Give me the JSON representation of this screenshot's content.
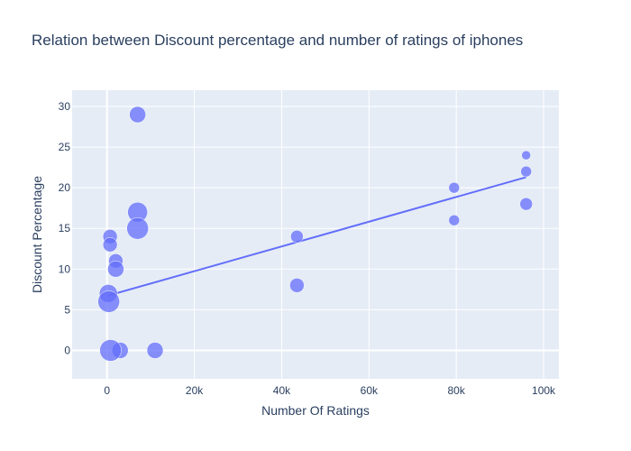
{
  "chart_data": {
    "type": "scatter",
    "title": "Relation between Discount percentage and number of ratings of iphones",
    "xlabel": "Number Of Ratings",
    "ylabel": "Discount Percentage",
    "xlim": [
      -8000,
      103500
    ],
    "ylim": [
      -3.5,
      32
    ],
    "x_ticks": [
      0,
      20000,
      40000,
      60000,
      80000,
      100000
    ],
    "x_tick_labels": [
      "0",
      "20k",
      "40k",
      "60k",
      "80k",
      "100k"
    ],
    "y_ticks": [
      0,
      5,
      10,
      15,
      20,
      25,
      30
    ],
    "y_tick_labels": [
      "0",
      "5",
      "10",
      "15",
      "20",
      "25",
      "30"
    ],
    "grid": true,
    "colors": {
      "plot_bg": "#e5ecf6",
      "grid": "#ffffff",
      "marker": "#636efa",
      "trendline": "#636efa"
    },
    "points": [
      {
        "x": 7000,
        "y": 29,
        "size": 9
      },
      {
        "x": 7000,
        "y": 17,
        "size": 11
      },
      {
        "x": 7000,
        "y": 15,
        "size": 12
      },
      {
        "x": 700,
        "y": 14,
        "size": 8
      },
      {
        "x": 700,
        "y": 13,
        "size": 8
      },
      {
        "x": 2000,
        "y": 11,
        "size": 8
      },
      {
        "x": 2000,
        "y": 10,
        "size": 9
      },
      {
        "x": 300,
        "y": 7,
        "size": 10
      },
      {
        "x": 400,
        "y": 6,
        "size": 12
      },
      {
        "x": 3000,
        "y": 0,
        "size": 9
      },
      {
        "x": 800,
        "y": 0,
        "size": 12
      },
      {
        "x": 11000,
        "y": 0,
        "size": 9
      },
      {
        "x": 43500,
        "y": 14,
        "size": 7
      },
      {
        "x": 43500,
        "y": 8,
        "size": 8
      },
      {
        "x": 79500,
        "y": 20,
        "size": 6
      },
      {
        "x": 79500,
        "y": 16,
        "size": 6
      },
      {
        "x": 96000,
        "y": 24,
        "size": 5
      },
      {
        "x": 96000,
        "y": 22,
        "size": 6
      },
      {
        "x": 96000,
        "y": 18,
        "size": 7
      }
    ],
    "trendline": {
      "x": [
        0,
        96000
      ],
      "y": [
        6.7,
        21.3
      ]
    }
  }
}
